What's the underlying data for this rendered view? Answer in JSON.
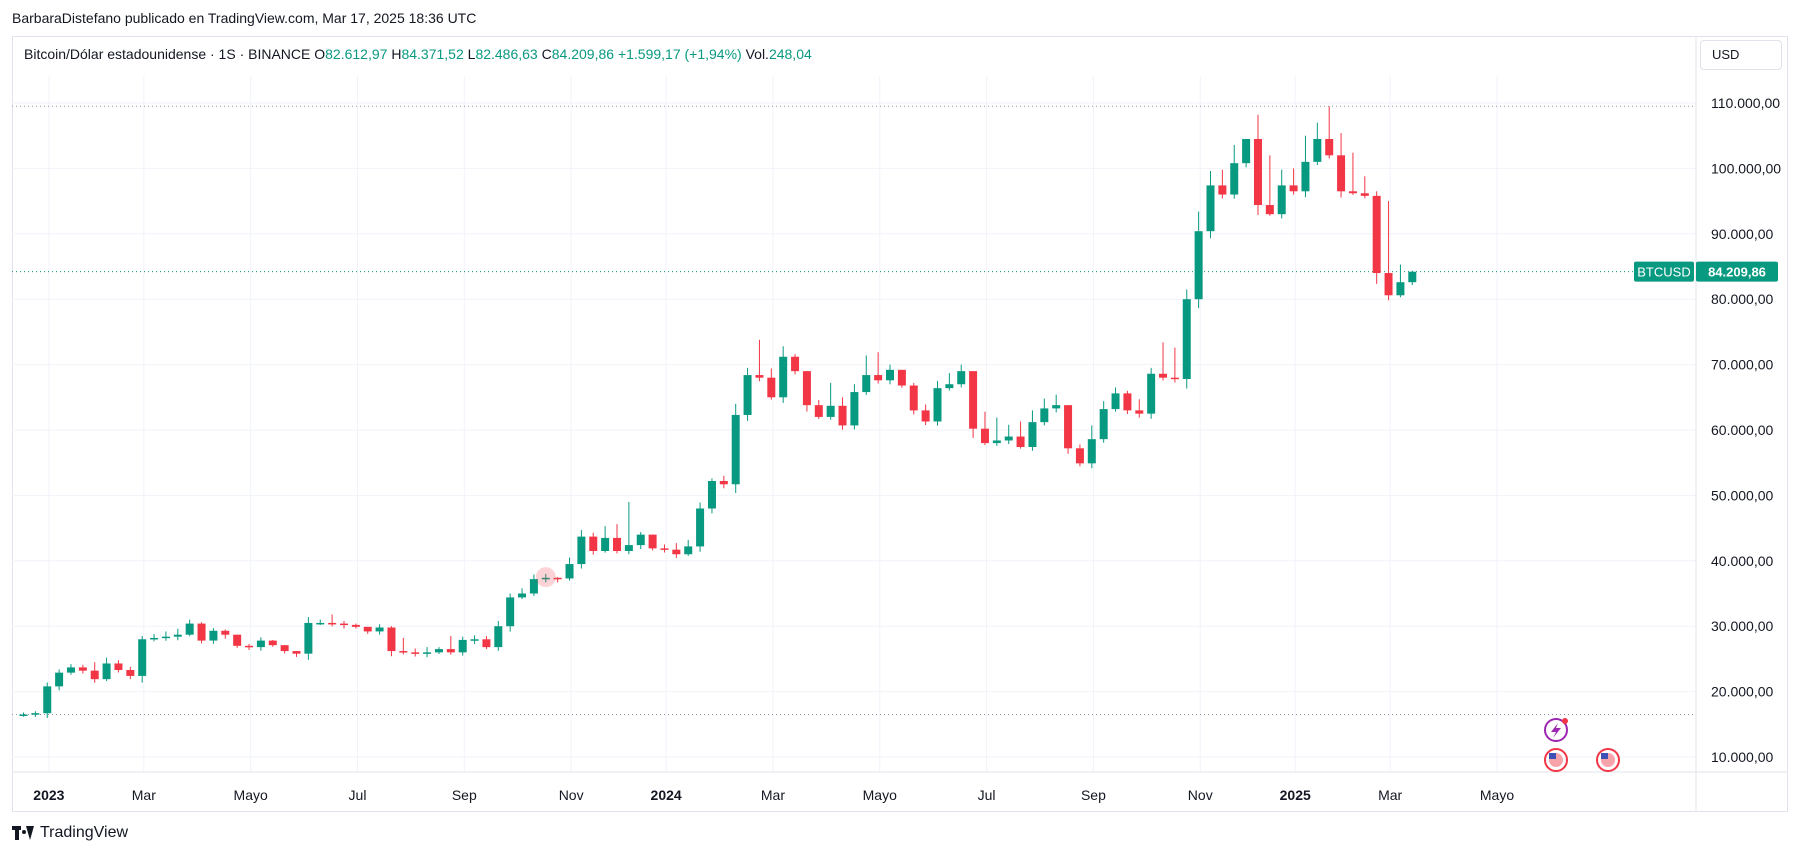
{
  "header": {
    "published_line": "BarbaraDistefano publicado en TradingView.com, Mar 17, 2025 18:36 UTC"
  },
  "legend": {
    "symbol": "Bitcoin/Dólar estadounidense · 1S · BINANCE",
    "open_label": "O",
    "open": "82.612,97",
    "high_label": "H",
    "high": "84.371,52",
    "low_label": "L",
    "low": "82.486,63",
    "close_label": "C",
    "close": "84.209,86",
    "change": "+1.599,17 (+1,94%)",
    "vol_label": "Vol.",
    "vol": "248,04"
  },
  "currency_button": "USD",
  "price_badge": {
    "ticker": "BTCUSD",
    "price": "84.209,86"
  },
  "footer": {
    "brand": "TradingView"
  },
  "colors": {
    "up": "#089981",
    "down": "#f23645",
    "grid": "#f0f3fa",
    "text": "#131722"
  },
  "chart_data": {
    "type": "candlestick",
    "timeframe": "1S",
    "y_range": [
      5000,
      115000
    ],
    "y_ticks": [
      10000,
      20000,
      30000,
      40000,
      50000,
      60000,
      70000,
      80000,
      90000,
      100000,
      110000
    ],
    "y_tick_labels": [
      "10.000,00",
      "20.000,00",
      "30.000,00",
      "40.000,00",
      "50.000,00",
      "60.000,00",
      "70.000,00",
      "80.000,00",
      "90.000,00",
      "100.000,00",
      "110.000,00"
    ],
    "x_ticks": [
      {
        "label": "2023",
        "week": 1,
        "bold": true
      },
      {
        "label": "Mar",
        "week": 9
      },
      {
        "label": "Mayo",
        "week": 18
      },
      {
        "label": "Jul",
        "week": 27
      },
      {
        "label": "Sep",
        "week": 36
      },
      {
        "label": "Nov",
        "week": 45
      },
      {
        "label": "2024",
        "week": 53,
        "bold": true
      },
      {
        "label": "Mar",
        "week": 62
      },
      {
        "label": "Mayo",
        "week": 71
      },
      {
        "label": "Jul",
        "week": 80
      },
      {
        "label": "Sep",
        "week": 89
      },
      {
        "label": "Nov",
        "week": 98
      },
      {
        "label": "2025",
        "week": 106,
        "bold": true
      },
      {
        "label": "Mar",
        "week": 114
      },
      {
        "label": "Mayo",
        "week": 123
      }
    ],
    "reference_lines": [
      {
        "value": 109500,
        "style": "dotted",
        "color": "#9598a1"
      },
      {
        "value": 16500,
        "style": "dotted",
        "color": "#9598a1"
      },
      {
        "value": 84209.86,
        "style": "dotted",
        "color": "#089981"
      }
    ],
    "close_series": [
      16500,
      16700,
      20800,
      22900,
      23700,
      23200,
      21900,
      24300,
      23300,
      22400,
      28000,
      28200,
      28400,
      28700,
      30400,
      27800,
      29300,
      28700,
      27000,
      26800,
      27800,
      27100,
      26200,
      25800,
      30500,
      30500,
      30400,
      30200,
      29900,
      29200,
      29800,
      26200,
      26000,
      25800,
      26000,
      26500,
      26000,
      27900,
      28000,
      26800,
      30000,
      34400,
      35000,
      37200,
      37400,
      37300,
      39500,
      43700,
      41500,
      43500,
      41500,
      42400,
      44000,
      41900,
      41700,
      41000,
      42200,
      48000,
      52200,
      51700,
      62300,
      68400,
      68000,
      65000,
      71200,
      69000,
      63800,
      62000,
      63700,
      60700,
      65800,
      68400,
      67600,
      69200,
      66800,
      63000,
      61300,
      66400,
      67000,
      69000,
      60200,
      58000,
      58400,
      59000,
      57400,
      61200,
      63300,
      63800,
      57200,
      54900,
      58600,
      63200,
      65600,
      63000,
      62500,
      68600,
      68000,
      67800,
      80000,
      90400,
      97400,
      96000,
      100800,
      104500,
      94400,
      93000,
      97400,
      96500,
      101000,
      104500,
      102000,
      96500,
      96200,
      95800,
      84000,
      80600,
      82600,
      84200
    ],
    "open_series_note": "each weekly candle opens at the previous close",
    "high_series": [
      16800,
      17000,
      21400,
      23400,
      24200,
      24100,
      24500,
      25200,
      24800,
      23800,
      28500,
      28800,
      29200,
      29600,
      31000,
      30600,
      29700,
      29500,
      28000,
      27300,
      28300,
      27900,
      27000,
      26100,
      31400,
      31000,
      31800,
      30800,
      30400,
      29700,
      30300,
      30000,
      28200,
      26600,
      26800,
      26800,
      28500,
      28400,
      28600,
      28500,
      30800,
      35000,
      35800,
      37900,
      38000,
      37500,
      40500,
      44700,
      44300,
      45300,
      45600,
      49000,
      44400,
      43800,
      42500,
      42700,
      43200,
      48900,
      52600,
      53000,
      64000,
      69500,
      73800,
      69400,
      72800,
      71600,
      66400,
      64600,
      67200,
      65000,
      67000,
      71400,
      71900,
      70000,
      68600,
      67200,
      63900,
      67500,
      68700,
      70000,
      68600,
      62800,
      61900,
      60800,
      61300,
      63000,
      64800,
      65400,
      60400,
      57800,
      60700,
      64400,
      66500,
      66000,
      64700,
      69500,
      73400,
      72600,
      81500,
      93400,
      99600,
      99800,
      103600,
      104100,
      108200,
      102000,
      99800,
      100000,
      105000,
      107000,
      109500,
      105400,
      102400,
      98800,
      96500,
      95000,
      85300,
      84371
    ]
  }
}
